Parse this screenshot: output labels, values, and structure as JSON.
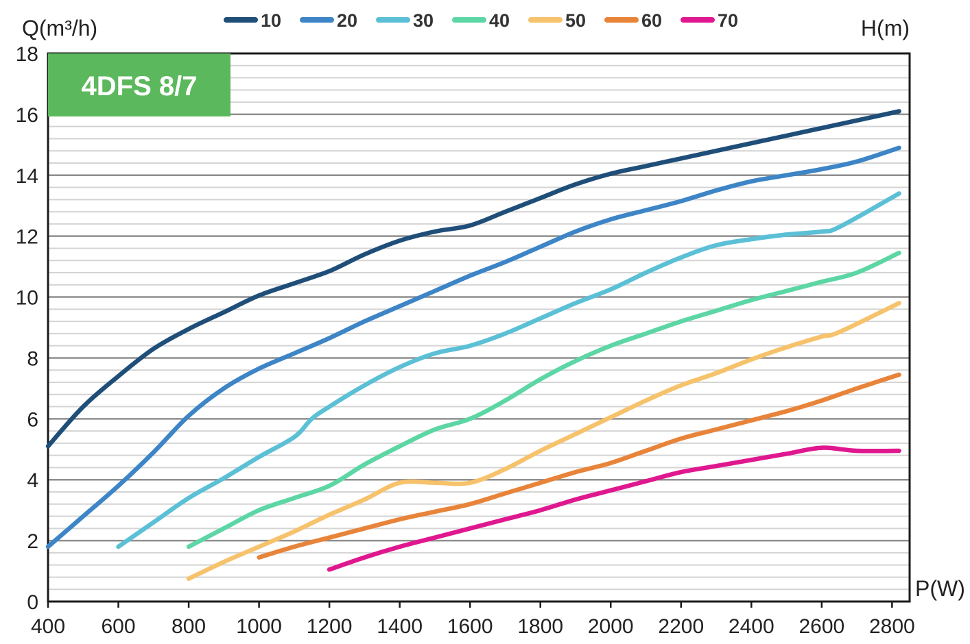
{
  "chart_data": {
    "type": "line",
    "title": "4DFS 8/7",
    "xlabel": "P(W)",
    "ylabel": "Q(m³/h)",
    "legend_title": "H(m)",
    "legend_position": "top-center",
    "xlim": [
      400,
      2850
    ],
    "ylim": [
      0,
      18
    ],
    "x_ticks": [
      400,
      600,
      800,
      1000,
      1200,
      1400,
      1600,
      1800,
      2000,
      2200,
      2400,
      2600,
      2800
    ],
    "y_ticks": [
      0,
      2,
      4,
      6,
      8,
      10,
      12,
      14,
      16,
      18
    ],
    "grid": true,
    "badge_color": "#5cb85c",
    "series": [
      {
        "name": "10",
        "color": "#1f4e79",
        "points": [
          [
            400,
            5.1
          ],
          [
            500,
            6.4
          ],
          [
            600,
            7.4
          ],
          [
            700,
            8.3
          ],
          [
            800,
            8.95
          ],
          [
            900,
            9.5
          ],
          [
            1000,
            10.05
          ],
          [
            1100,
            10.45
          ],
          [
            1200,
            10.85
          ],
          [
            1300,
            11.4
          ],
          [
            1400,
            11.85
          ],
          [
            1500,
            12.15
          ],
          [
            1600,
            12.35
          ],
          [
            1700,
            12.8
          ],
          [
            1800,
            13.25
          ],
          [
            1900,
            13.7
          ],
          [
            2000,
            14.05
          ],
          [
            2100,
            14.3
          ],
          [
            2200,
            14.55
          ],
          [
            2300,
            14.8
          ],
          [
            2400,
            15.05
          ],
          [
            2500,
            15.3
          ],
          [
            2600,
            15.55
          ],
          [
            2700,
            15.8
          ],
          [
            2820,
            16.1
          ]
        ]
      },
      {
        "name": "20",
        "color": "#3d85c6",
        "points": [
          [
            400,
            1.8
          ],
          [
            500,
            2.8
          ],
          [
            600,
            3.8
          ],
          [
            700,
            4.9
          ],
          [
            800,
            6.1
          ],
          [
            900,
            7.0
          ],
          [
            1000,
            7.65
          ],
          [
            1100,
            8.15
          ],
          [
            1200,
            8.65
          ],
          [
            1300,
            9.2
          ],
          [
            1400,
            9.7
          ],
          [
            1500,
            10.2
          ],
          [
            1600,
            10.7
          ],
          [
            1700,
            11.15
          ],
          [
            1800,
            11.65
          ],
          [
            1900,
            12.15
          ],
          [
            2000,
            12.55
          ],
          [
            2100,
            12.85
          ],
          [
            2200,
            13.15
          ],
          [
            2300,
            13.5
          ],
          [
            2400,
            13.8
          ],
          [
            2500,
            14.0
          ],
          [
            2600,
            14.2
          ],
          [
            2700,
            14.45
          ],
          [
            2820,
            14.9
          ]
        ]
      },
      {
        "name": "30",
        "color": "#5bc0d6",
        "points": [
          [
            600,
            1.8
          ],
          [
            700,
            2.6
          ],
          [
            800,
            3.4
          ],
          [
            900,
            4.05
          ],
          [
            1000,
            4.75
          ],
          [
            1100,
            5.4
          ],
          [
            1150,
            6.0
          ],
          [
            1200,
            6.4
          ],
          [
            1300,
            7.1
          ],
          [
            1400,
            7.7
          ],
          [
            1500,
            8.15
          ],
          [
            1600,
            8.4
          ],
          [
            1700,
            8.8
          ],
          [
            1800,
            9.3
          ],
          [
            1900,
            9.8
          ],
          [
            2000,
            10.25
          ],
          [
            2100,
            10.8
          ],
          [
            2200,
            11.3
          ],
          [
            2300,
            11.7
          ],
          [
            2400,
            11.9
          ],
          [
            2500,
            12.05
          ],
          [
            2600,
            12.15
          ],
          [
            2650,
            12.3
          ],
          [
            2820,
            13.4
          ]
        ]
      },
      {
        "name": "40",
        "color": "#5dd6a5",
        "points": [
          [
            800,
            1.8
          ],
          [
            900,
            2.4
          ],
          [
            1000,
            3.0
          ],
          [
            1100,
            3.4
          ],
          [
            1200,
            3.8
          ],
          [
            1300,
            4.5
          ],
          [
            1400,
            5.1
          ],
          [
            1500,
            5.65
          ],
          [
            1600,
            6.0
          ],
          [
            1700,
            6.6
          ],
          [
            1800,
            7.3
          ],
          [
            1900,
            7.9
          ],
          [
            2000,
            8.4
          ],
          [
            2100,
            8.8
          ],
          [
            2200,
            9.2
          ],
          [
            2300,
            9.55
          ],
          [
            2400,
            9.9
          ],
          [
            2500,
            10.2
          ],
          [
            2600,
            10.5
          ],
          [
            2700,
            10.8
          ],
          [
            2820,
            11.45
          ]
        ]
      },
      {
        "name": "50",
        "color": "#f6c26b",
        "points": [
          [
            800,
            0.75
          ],
          [
            900,
            1.3
          ],
          [
            1000,
            1.8
          ],
          [
            1100,
            2.3
          ],
          [
            1200,
            2.85
          ],
          [
            1300,
            3.35
          ],
          [
            1400,
            3.9
          ],
          [
            1500,
            3.9
          ],
          [
            1600,
            3.9
          ],
          [
            1700,
            4.35
          ],
          [
            1800,
            4.95
          ],
          [
            1900,
            5.5
          ],
          [
            2000,
            6.05
          ],
          [
            2100,
            6.6
          ],
          [
            2200,
            7.1
          ],
          [
            2300,
            7.5
          ],
          [
            2400,
            7.95
          ],
          [
            2500,
            8.35
          ],
          [
            2600,
            8.7
          ],
          [
            2650,
            8.85
          ],
          [
            2820,
            9.8
          ]
        ]
      },
      {
        "name": "60",
        "color": "#e8843a",
        "points": [
          [
            1000,
            1.45
          ],
          [
            1100,
            1.8
          ],
          [
            1200,
            2.1
          ],
          [
            1300,
            2.4
          ],
          [
            1400,
            2.7
          ],
          [
            1500,
            2.95
          ],
          [
            1600,
            3.2
          ],
          [
            1700,
            3.55
          ],
          [
            1800,
            3.9
          ],
          [
            1900,
            4.25
          ],
          [
            2000,
            4.55
          ],
          [
            2100,
            4.95
          ],
          [
            2200,
            5.35
          ],
          [
            2300,
            5.65
          ],
          [
            2400,
            5.95
          ],
          [
            2500,
            6.25
          ],
          [
            2600,
            6.6
          ],
          [
            2700,
            7.0
          ],
          [
            2820,
            7.45
          ]
        ]
      },
      {
        "name": "70",
        "color": "#e0188f",
        "points": [
          [
            1200,
            1.05
          ],
          [
            1300,
            1.45
          ],
          [
            1400,
            1.8
          ],
          [
            1500,
            2.1
          ],
          [
            1600,
            2.4
          ],
          [
            1700,
            2.7
          ],
          [
            1800,
            3.0
          ],
          [
            1900,
            3.35
          ],
          [
            2000,
            3.65
          ],
          [
            2100,
            3.95
          ],
          [
            2200,
            4.25
          ],
          [
            2300,
            4.45
          ],
          [
            2400,
            4.65
          ],
          [
            2500,
            4.85
          ],
          [
            2600,
            5.05
          ],
          [
            2700,
            4.95
          ],
          [
            2820,
            4.95
          ]
        ]
      }
    ]
  }
}
